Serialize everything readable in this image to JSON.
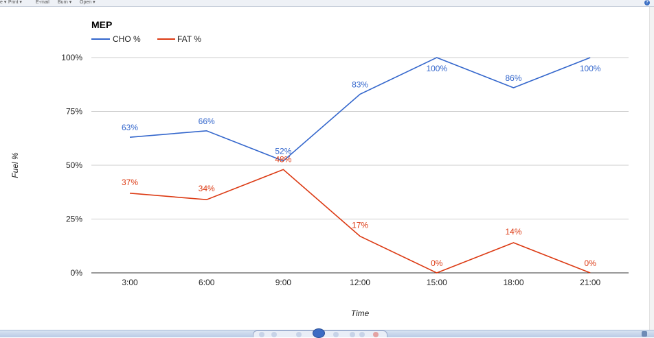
{
  "toolbar": {
    "items": [
      "e ▾",
      "Print ▾",
      "E-mail",
      "Burn ▾",
      "Open ▾"
    ],
    "help_icon": "question-icon",
    "help_label": "?"
  },
  "chart_data": {
    "type": "line",
    "title": "MEP",
    "xlabel": "Time",
    "ylabel": "Fuel %",
    "categories": [
      "3:00",
      "6:00",
      "9:00",
      "12:00",
      "15:00",
      "18:00",
      "21:00"
    ],
    "series": [
      {
        "name": "CHO %",
        "color": "#3366cc",
        "values": [
          63,
          66,
          52,
          83,
          100,
          86,
          100
        ],
        "labels": [
          "63%",
          "66%",
          "52%",
          "83%",
          "100%",
          "86%",
          "100%"
        ]
      },
      {
        "name": "FAT %",
        "color": "#dc3912",
        "values": [
          37,
          34,
          48,
          17,
          0,
          14,
          0
        ],
        "labels": [
          "37%",
          "34%",
          "48%",
          "17%",
          "0%",
          "14%",
          "0%"
        ]
      }
    ],
    "ylim": [
      0,
      100
    ],
    "yticks": [
      0,
      25,
      50,
      75,
      100
    ],
    "ytick_labels": [
      "0%",
      "25%",
      "50%",
      "75%",
      "100%"
    ],
    "grid": true,
    "legend": "top-left"
  },
  "taskbar": {
    "player_icon": "media-player-icon"
  }
}
